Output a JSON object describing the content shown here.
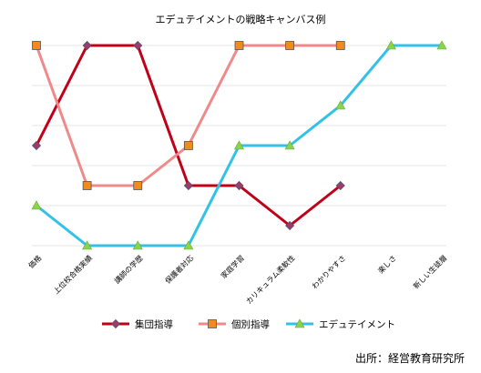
{
  "chart_data": {
    "type": "line",
    "title": "エデュテイメントの戦略キャンバス例",
    "categories": [
      "価格",
      "上位校合格実績",
      "講師の学歴",
      "保護者対応",
      "家庭学習",
      "カリキュラム柔軟性",
      "わかりやすさ",
      "楽しさ",
      "新しい生徒層"
    ],
    "ylim": [
      0,
      5
    ],
    "grid": true,
    "legend_position": "bottom",
    "series": [
      {
        "name": "集団指導",
        "color": "#c00018",
        "marker": "diamond",
        "marker_color": "#9b3a74",
        "values": [
          2.5,
          5,
          5,
          1.5,
          1.5,
          0.5,
          1.5,
          null,
          null
        ]
      },
      {
        "name": "個別指導",
        "color": "#f08a8a",
        "marker": "square",
        "marker_color": "#f08c1e",
        "values": [
          5,
          1.5,
          1.5,
          2.5,
          5,
          5,
          5,
          null,
          null
        ]
      },
      {
        "name": "エデュテイメント",
        "color": "#33c1e6",
        "marker": "triangle",
        "marker_color": "#8ad44a",
        "values": [
          1,
          0,
          0,
          0,
          2.5,
          2.5,
          3.5,
          5,
          5
        ]
      }
    ]
  },
  "source": "出所：経営教育研究所"
}
